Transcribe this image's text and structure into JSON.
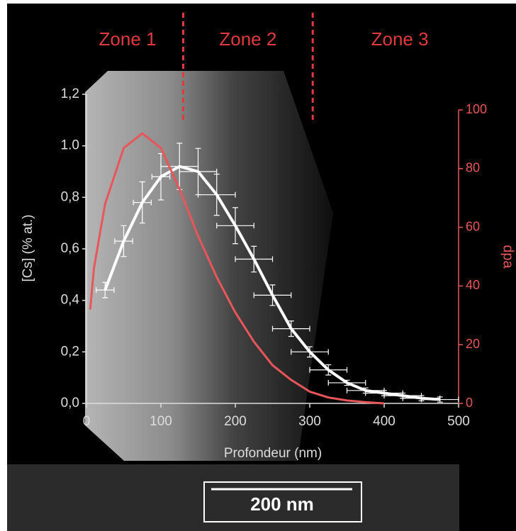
{
  "chart_data": {
    "type": "line",
    "zones": [
      "Zone 1",
      "Zone 2",
      "Zone 3"
    ],
    "zone_boundaries": [
      130,
      304
    ],
    "xlabel": "Profondeur (nm)",
    "ylabel": "[Cs] (% at.)",
    "y2label": "dpa",
    "xlim": [
      0,
      500
    ],
    "xticks": [
      0,
      100,
      200,
      300,
      400,
      500
    ],
    "ylim": [
      0,
      1.2
    ],
    "yticks": [
      {
        "value": 0,
        "label": "0,0"
      },
      {
        "value": 0.2,
        "label": "0,2"
      },
      {
        "value": 0.4,
        "label": "0,4"
      },
      {
        "value": 0.6,
        "label": "0,6"
      },
      {
        "value": 0.8,
        "label": "0,8"
      },
      {
        "value": 1.0,
        "label": "1.0"
      },
      {
        "value": 1.2,
        "label": "1,2"
      }
    ],
    "y2lim": [
      0,
      100
    ],
    "y2ticks": [
      0,
      20,
      40,
      60,
      80,
      100
    ],
    "series": [
      {
        "name": "[Cs]",
        "color": "#ffffff",
        "x": [
          25,
          50,
          75,
          100,
          125,
          150,
          175,
          200,
          225,
          250,
          275,
          300,
          325,
          350,
          375,
          400,
          425,
          450,
          475
        ],
        "values": [
          0.44,
          0.63,
          0.78,
          0.88,
          0.92,
          0.9,
          0.81,
          0.69,
          0.56,
          0.42,
          0.29,
          0.2,
          0.13,
          0.08,
          0.05,
          0.04,
          0.03,
          0.02,
          0.015
        ],
        "y_errors": [
          0.03,
          0.06,
          0.08,
          0.09,
          0.09,
          0.09,
          0.08,
          0.07,
          0.05,
          0.04,
          0.03,
          0.02,
          0.02,
          0.01,
          0.01,
          0.01,
          0.01,
          0.01,
          0.01
        ],
        "x_errors": [
          12,
          12,
          12,
          12,
          25,
          25,
          25,
          25,
          25,
          25,
          25,
          25,
          25,
          25,
          25,
          25,
          25,
          25,
          25
        ]
      },
      {
        "name": "dpa",
        "color": "#e8565a",
        "axis": "y2",
        "x": [
          5,
          10,
          25,
          50,
          75,
          100,
          125,
          150,
          175,
          200,
          225,
          250,
          275,
          300,
          325,
          350,
          375,
          400
        ],
        "values": [
          32,
          46,
          68,
          87,
          92,
          87,
          73,
          57,
          43,
          31,
          21,
          13,
          8,
          4,
          2,
          1,
          0.4,
          0
        ]
      }
    ],
    "scale_bar": "200 nm"
  }
}
